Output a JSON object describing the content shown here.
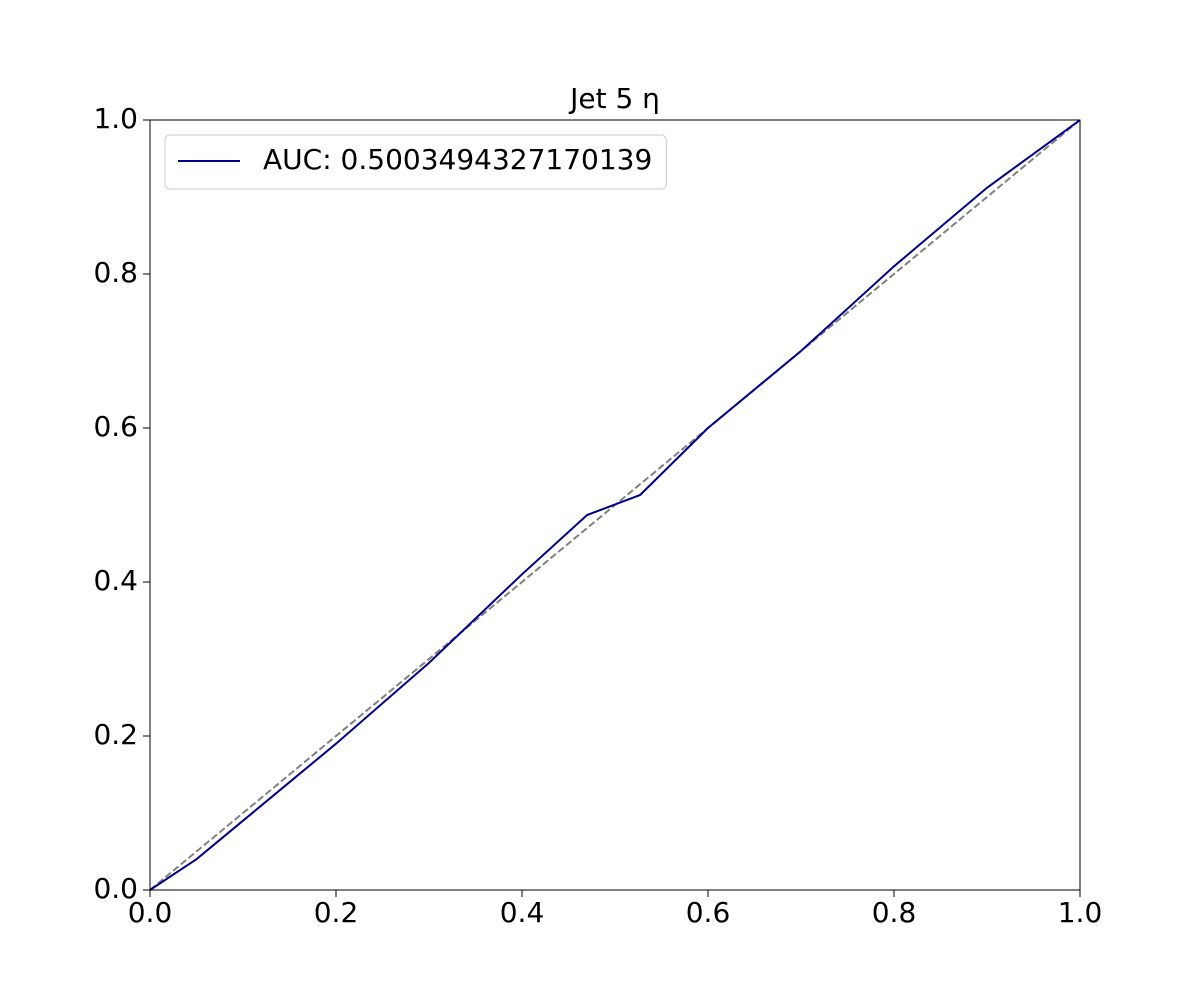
{
  "chart_data": {
    "type": "line",
    "title": "Jet 5 η",
    "series": [
      {
        "name": "AUC: 0.5003494327170139",
        "color": "#00008b",
        "x": [
          0,
          0.05,
          0.1,
          0.15,
          0.2,
          0.3,
          0.4,
          0.47,
          0.527,
          0.6,
          0.7,
          0.8,
          0.9,
          1.0
        ],
        "values": [
          0,
          0.04,
          0.09,
          0.14,
          0.19,
          0.295,
          0.41,
          0.487,
          0.513,
          0.6,
          0.7,
          0.81,
          0.912,
          1.0
        ]
      },
      {
        "color": "#808080",
        "dashed": true,
        "x": [
          0,
          1
        ],
        "values": [
          0,
          1
        ]
      }
    ],
    "xlim": [
      0,
      1
    ],
    "ylim": [
      0,
      1
    ],
    "xticks": [
      {
        "value": 0,
        "label": "0.0"
      },
      0.2,
      0.4,
      0.6,
      0.8,
      {
        "value": 1,
        "label": "1.0"
      }
    ],
    "yticks": [
      {
        "value": 0,
        "label": "0.0"
      },
      0.2,
      0.4,
      0.6,
      0.8,
      {
        "value": 1,
        "label": "1.0"
      }
    ],
    "legend": "upper left"
  }
}
